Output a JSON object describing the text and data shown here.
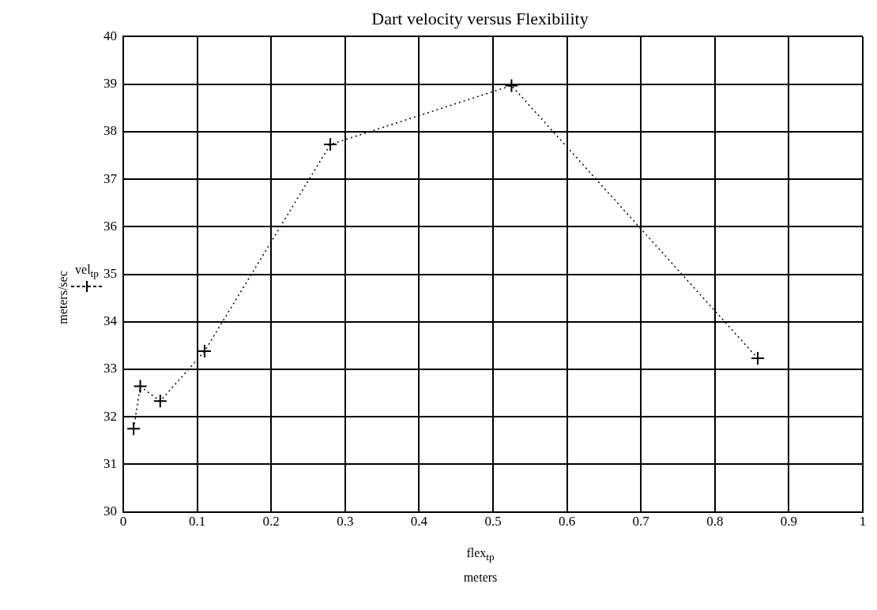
{
  "chart_data": {
    "type": "line",
    "title": "Dart velocity versus Flexibility",
    "xlabel": "flex$_{tp}$\nmeters",
    "ylabel": "meters/sec",
    "series": [
      {
        "name": "vel$_{tp}$",
        "color": "#000000",
        "x": [
          0.014,
          0.023,
          0.05,
          0.11,
          0.28,
          0.525,
          0.858
        ],
        "values": [
          31.75,
          32.64,
          32.33,
          33.38,
          37.73,
          38.97,
          33.23
        ]
      }
    ],
    "xlim": [
      0,
      1
    ],
    "xticks": [
      0,
      0.1,
      0.2,
      0.3,
      0.4,
      0.5,
      0.6,
      0.7,
      0.8,
      0.9,
      1
    ],
    "ylim": [
      30,
      40
    ],
    "yticks": [
      30,
      31,
      32,
      33,
      34,
      35,
      36,
      37,
      38,
      39,
      40
    ],
    "grid": true,
    "legend": "left",
    "marker": "cross",
    "line_style": "dotted"
  }
}
